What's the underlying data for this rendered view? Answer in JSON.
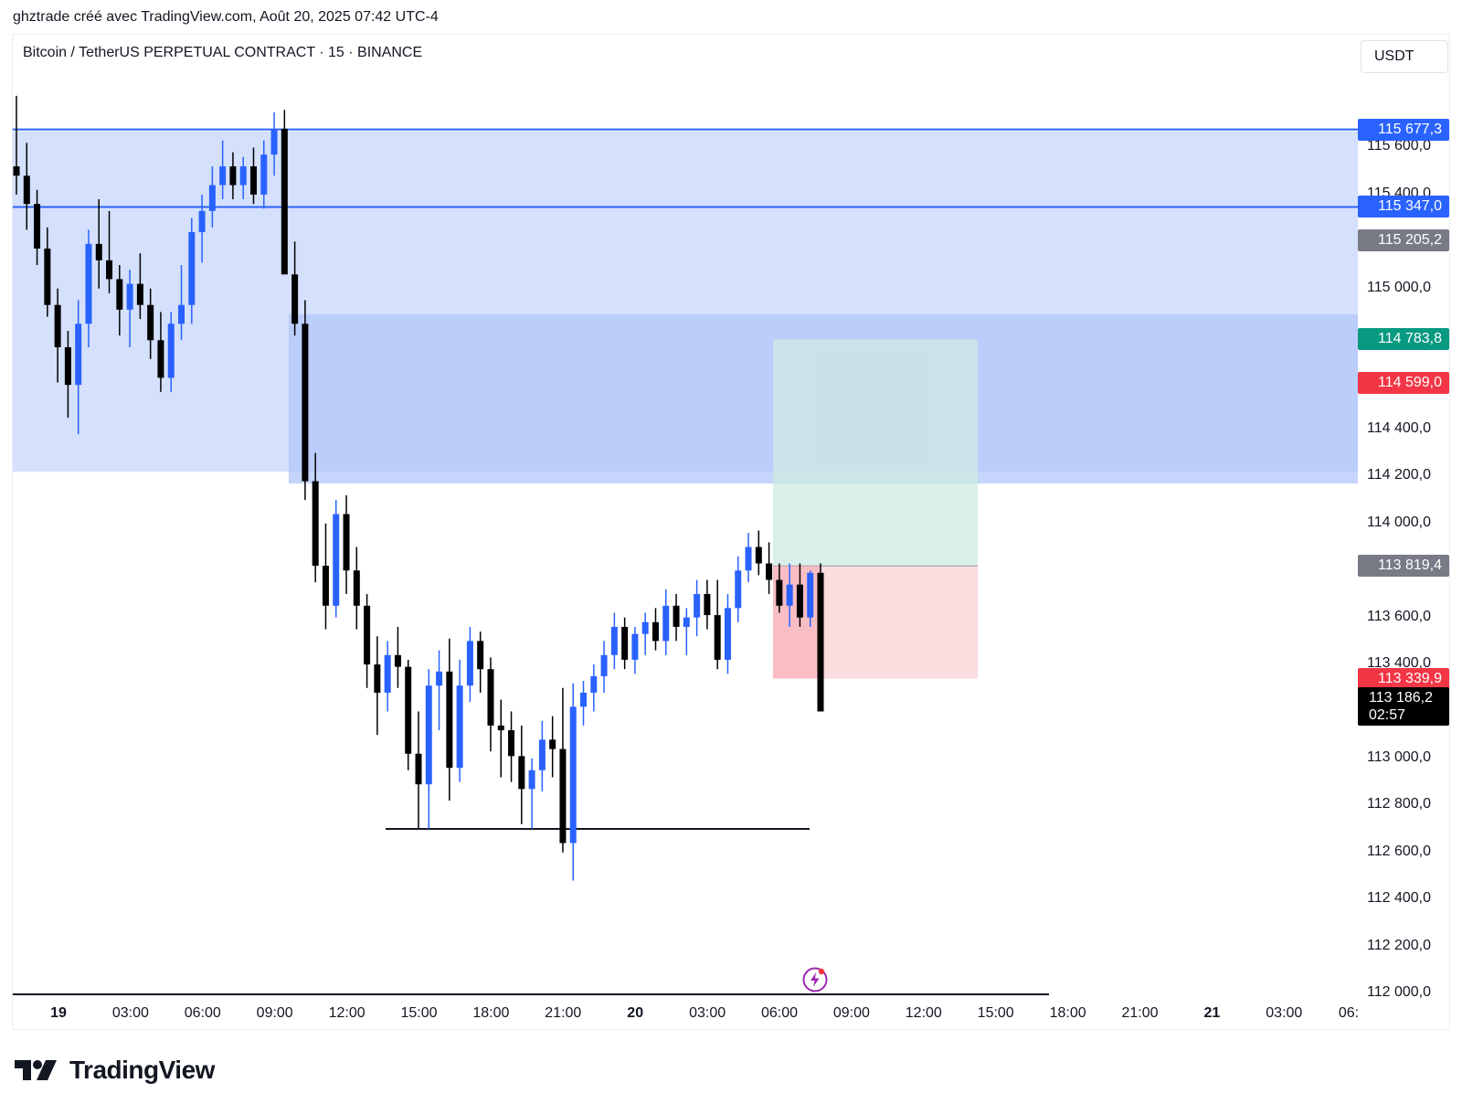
{
  "header": {
    "attribution": "ghztrade créé avec TradingView.com, Août 20, 2025 07:42 UTC-4"
  },
  "legend": {
    "symbol_line": "Bitcoin / TetherUS PERPETUAL CONTRACT · 15 · BINANCE"
  },
  "currency": "USDT",
  "footer": {
    "brand": "TradingView"
  },
  "colors": {
    "up": "#2962ff",
    "down": "#000000",
    "zone_light": "#d4e0fc",
    "zone_dark": "#b3c7fb",
    "target": "#cde9e3",
    "stop": "#fcd8dc",
    "tag_blue": "#2962ff",
    "tag_gray": "#787b86",
    "tag_green": "#089981",
    "tag_red": "#f23645"
  },
  "chart_data": {
    "type": "candlestick",
    "symbol": "Bitcoin / TetherUS PERPETUAL CONTRACT",
    "interval": "15",
    "exchange": "BINANCE",
    "currency": "USDT",
    "ylim": [
      111900,
      115850
    ],
    "x_ticks": [
      "19",
      "03:00",
      "06:00",
      "09:00",
      "12:00",
      "15:00",
      "18:00",
      "21:00",
      "20",
      "03:00",
      "06:00",
      "09:00",
      "12:00",
      "15:00",
      "18:00",
      "21:00",
      "21",
      "03:00",
      "06:"
    ],
    "x_bold_ticks": [
      "19",
      "20",
      "21"
    ],
    "y_ticks": [
      "115 600,0",
      "115 400,0",
      "115 000,0",
      "114 400,0",
      "114 200,0",
      "114 000,0",
      "113 600,0",
      "113 400,0",
      "113 000,0",
      "112 800,0",
      "112 600,0",
      "112 400,0",
      "112 200,0",
      "112 000,0"
    ],
    "y_tick_values": [
      115600,
      115400,
      115000,
      114400,
      114200,
      114000,
      113600,
      113400,
      113000,
      112800,
      112600,
      112400,
      112200,
      112000
    ],
    "price_tags": [
      {
        "label": "115 677,3",
        "value": 115677.3,
        "color": "blue"
      },
      {
        "label": "115 347,0",
        "value": 115347.0,
        "color": "blue"
      },
      {
        "label": "115 205,2",
        "value": 115205.2,
        "color": "gray"
      },
      {
        "label": "114 783,8",
        "value": 114783.8,
        "color": "green"
      },
      {
        "label": "114 599,0",
        "value": 114599.0,
        "color": "red"
      },
      {
        "label": "113 819,4",
        "value": 113819.4,
        "color": "gray"
      },
      {
        "label": "113 339,9",
        "value": 113339.9,
        "color": "red"
      }
    ],
    "last_price": {
      "label": "113 186,2",
      "value": 113186.2,
      "countdown": "02:57"
    },
    "horizontal_lines": [
      115677.3,
      115347.0
    ],
    "support_line": 112700,
    "zones": [
      {
        "name": "supply-zone-outer",
        "from": 114220,
        "to": 115670
      },
      {
        "name": "supply-zone-inner",
        "from": 114170,
        "to": 114890
      }
    ],
    "long_position": {
      "entry": 113819.4,
      "target": 114783.8,
      "stop": 113339.9
    },
    "candles_ohlc": [
      [
        115520,
        115820,
        115400,
        115480
      ],
      [
        115480,
        115620,
        115250,
        115360
      ],
      [
        115360,
        115420,
        115100,
        115170
      ],
      [
        115170,
        115260,
        114880,
        114930
      ],
      [
        114930,
        115000,
        114600,
        114750
      ],
      [
        114750,
        114820,
        114450,
        114590
      ],
      [
        114590,
        114950,
        114380,
        114850
      ],
      [
        114850,
        115250,
        114750,
        115190
      ],
      [
        115190,
        115380,
        115000,
        115120
      ],
      [
        115120,
        115330,
        114980,
        115040
      ],
      [
        115040,
        115100,
        114800,
        114910
      ],
      [
        114910,
        115080,
        114750,
        115020
      ],
      [
        115020,
        115150,
        114870,
        114930
      ],
      [
        114930,
        115000,
        114700,
        114780
      ],
      [
        114780,
        114900,
        114560,
        114620
      ],
      [
        114620,
        114900,
        114560,
        114850
      ],
      [
        114850,
        115100,
        114780,
        114930
      ],
      [
        114930,
        115300,
        114850,
        115240
      ],
      [
        115240,
        115400,
        115110,
        115330
      ],
      [
        115330,
        115520,
        115260,
        115440
      ],
      [
        115440,
        115630,
        115380,
        115520
      ],
      [
        115520,
        115580,
        115380,
        115440
      ],
      [
        115440,
        115560,
        115380,
        115520
      ],
      [
        115520,
        115600,
        115360,
        115400
      ],
      [
        115400,
        115630,
        115340,
        115570
      ],
      [
        115570,
        115750,
        115480,
        115680
      ],
      [
        115680,
        115760,
        115300,
        115060
      ],
      [
        115060,
        115200,
        114800,
        114850
      ],
      [
        114850,
        114950,
        114100,
        114180
      ],
      [
        114180,
        114300,
        113750,
        113820
      ],
      [
        113820,
        114000,
        113550,
        113650
      ],
      [
        113650,
        114100,
        113600,
        114040
      ],
      [
        114040,
        114120,
        113700,
        113800
      ],
      [
        113800,
        113900,
        113550,
        113650
      ],
      [
        113650,
        113700,
        113300,
        113400
      ],
      [
        113400,
        113520,
        113100,
        113280
      ],
      [
        113280,
        113500,
        113200,
        113440
      ],
      [
        113440,
        113560,
        113300,
        113390
      ],
      [
        113390,
        113420,
        112950,
        113020
      ],
      [
        113020,
        113200,
        112700,
        112890
      ],
      [
        112890,
        113380,
        112700,
        113310
      ],
      [
        113310,
        113460,
        113120,
        113370
      ],
      [
        113370,
        113510,
        112820,
        112960
      ],
      [
        112960,
        113420,
        112900,
        113310
      ],
      [
        113310,
        113560,
        113240,
        113500
      ],
      [
        113500,
        113540,
        113280,
        113380
      ],
      [
        113380,
        113430,
        113030,
        113140
      ],
      [
        113140,
        113250,
        112920,
        113120
      ],
      [
        113120,
        113200,
        112900,
        113010
      ],
      [
        113010,
        113140,
        112720,
        112870
      ],
      [
        112870,
        113000,
        112700,
        112950
      ],
      [
        112950,
        113160,
        112860,
        113080
      ],
      [
        113080,
        113180,
        112920,
        113040
      ],
      [
        113040,
        113300,
        112600,
        112640
      ],
      [
        112640,
        113320,
        112480,
        113220
      ],
      [
        113220,
        113330,
        113140,
        113280
      ],
      [
        113280,
        113400,
        113200,
        113350
      ],
      [
        113350,
        113500,
        113280,
        113440
      ],
      [
        113440,
        113620,
        113380,
        113560
      ],
      [
        113560,
        113600,
        113380,
        113420
      ],
      [
        113420,
        113560,
        113360,
        113530
      ],
      [
        113530,
        113620,
        113440,
        113580
      ],
      [
        113580,
        113640,
        113460,
        113500
      ],
      [
        113500,
        113720,
        113440,
        113650
      ],
      [
        113650,
        113700,
        113500,
        113560
      ],
      [
        113560,
        113640,
        113440,
        113600
      ],
      [
        113600,
        113760,
        113520,
        113700
      ],
      [
        113700,
        113760,
        113550,
        113610
      ],
      [
        113610,
        113760,
        113380,
        113420
      ],
      [
        113420,
        113700,
        113360,
        113640
      ],
      [
        113640,
        113860,
        113580,
        113800
      ],
      [
        113800,
        113960,
        113750,
        113900
      ],
      [
        113900,
        113970,
        113780,
        113830
      ],
      [
        113830,
        113920,
        113700,
        113760
      ],
      [
        113760,
        113830,
        113620,
        113650
      ],
      [
        113650,
        113830,
        113560,
        113740
      ],
      [
        113740,
        113830,
        113560,
        113600
      ],
      [
        113600,
        113800,
        113560,
        113790
      ],
      [
        113790,
        113830,
        113400,
        113200
      ]
    ]
  }
}
